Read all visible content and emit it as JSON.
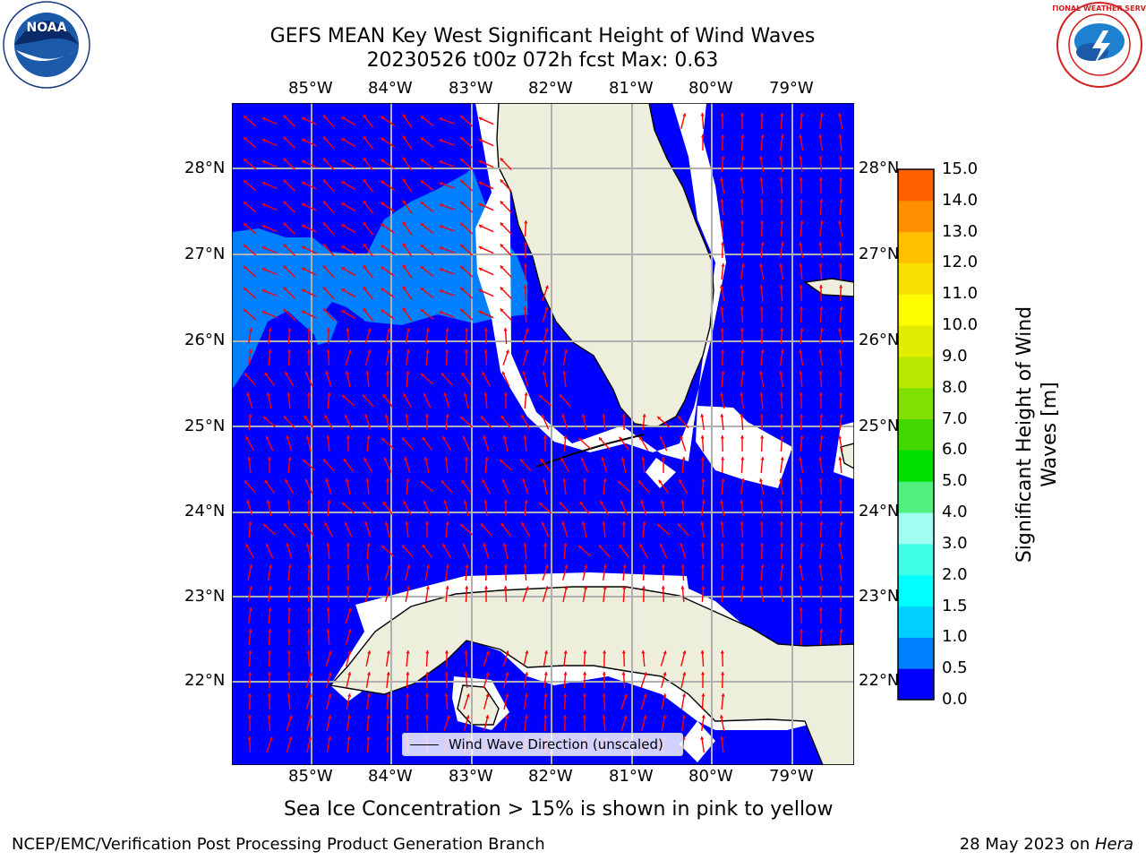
{
  "title": {
    "line1": "GEFS MEAN Key West Significant Height of Wind Waves",
    "line2": "20230526 t00z 072h fcst   Max: 0.63"
  },
  "axes": {
    "lon_ticks": [
      "85°W",
      "84°W",
      "83°W",
      "82°W",
      "81°W",
      "80°W",
      "79°W"
    ],
    "lat_ticks": [
      "28°N",
      "27°N",
      "26°N",
      "25°N",
      "24°N",
      "23°N",
      "22°N"
    ]
  },
  "colorbar": {
    "label": "Significant Height of Wind Waves [m]",
    "ticks": [
      "15.0",
      "14.0",
      "13.0",
      "12.0",
      "11.0",
      "10.0",
      "9.0",
      "8.0",
      "7.0",
      "6.0",
      "5.0",
      "4.0",
      "3.0",
      "2.0",
      "1.5",
      "1.0",
      "0.5",
      "0.0"
    ],
    "colors": [
      "#0000ff",
      "#0080ff",
      "#00d0ff",
      "#00ffff",
      "#40ffe8",
      "#a0fff0",
      "#50f080",
      "#00e000",
      "#40d800",
      "#80e000",
      "#b8e800",
      "#e0ec00",
      "#ffff00",
      "#f8e000",
      "#ffc000",
      "#ff9000",
      "#ff6000",
      "#ff3000",
      "#ff0000"
    ]
  },
  "legend": {
    "label": "Wind Wave Direction (unscaled)"
  },
  "note": "Sea Ice Concentration > 15% is shown in pink to yellow",
  "footer": {
    "left": "NCEP/EMC/Verification Post Processing Product Generation Branch",
    "right_date": "28 May 2023 on ",
    "right_host": "Hera"
  },
  "logos": {
    "noaa_text": "NOAA",
    "nws_text": "NATIONAL WEATHER SERVICE"
  },
  "map_colors": {
    "ocean": "#0000ff",
    "ocean_light": "#0080ff",
    "land": "#eeeedd",
    "nodata": "#ffffff",
    "arrow": "#ff0000",
    "grid": "#b0b0b0"
  }
}
